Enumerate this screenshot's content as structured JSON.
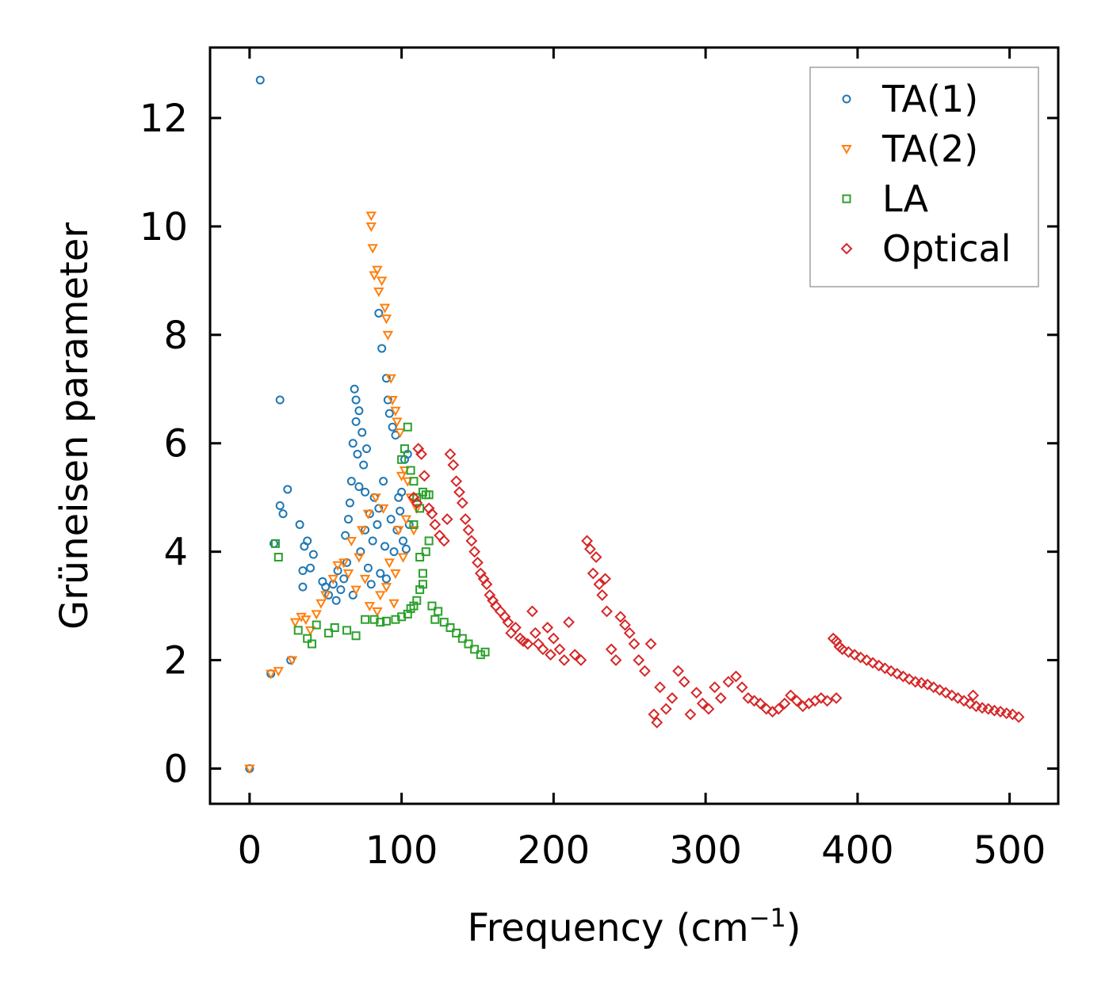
{
  "chart_data": {
    "type": "scatter",
    "title": "",
    "xlabel": "Frequency (cm",
    "xlabel_superscript": "−1",
    "xlabel_suffix": ")",
    "ylabel": "Grüneisen parameter",
    "xlim": [
      -26,
      532
    ],
    "ylim": [
      -0.65,
      13.3
    ],
    "xticks": [
      0,
      100,
      200,
      300,
      400,
      500
    ],
    "yticks": [
      0,
      2,
      4,
      6,
      8,
      10,
      12
    ],
    "legend_position": "top-right",
    "grid": false,
    "series": [
      {
        "name": "TA(1)",
        "marker": "circle",
        "color": "#1f77b4",
        "points": [
          [
            0,
            0.0
          ],
          [
            7,
            12.7
          ],
          [
            14,
            1.75
          ],
          [
            16,
            4.15
          ],
          [
            20,
            6.8
          ],
          [
            20,
            4.85
          ],
          [
            22,
            4.7
          ],
          [
            25,
            5.15
          ],
          [
            27,
            2.0
          ],
          [
            33,
            4.5
          ],
          [
            35,
            3.65
          ],
          [
            35,
            3.35
          ],
          [
            36,
            4.1
          ],
          [
            38,
            4.2
          ],
          [
            40,
            3.7
          ],
          [
            42,
            3.95
          ],
          [
            48,
            3.45
          ],
          [
            50,
            3.35
          ],
          [
            52,
            3.2
          ],
          [
            55,
            3.4
          ],
          [
            58,
            3.65
          ],
          [
            60,
            3.3
          ],
          [
            62,
            3.5
          ],
          [
            63,
            4.3
          ],
          [
            65,
            4.6
          ],
          [
            66,
            4.9
          ],
          [
            67,
            5.3
          ],
          [
            68,
            6.0
          ],
          [
            69,
            7.0
          ],
          [
            70,
            6.8
          ],
          [
            70,
            6.4
          ],
          [
            71,
            5.8
          ],
          [
            72,
            5.2
          ],
          [
            72,
            6.6
          ],
          [
            73,
            4.0
          ],
          [
            74,
            6.2
          ],
          [
            75,
            5.6
          ],
          [
            76,
            5.1
          ],
          [
            76,
            4.4
          ],
          [
            77,
            5.9
          ],
          [
            78,
            3.7
          ],
          [
            79,
            4.7
          ],
          [
            80,
            3.4
          ],
          [
            81,
            4.2
          ],
          [
            82,
            5.0
          ],
          [
            84,
            4.5
          ],
          [
            85,
            8.4
          ],
          [
            85,
            4.8
          ],
          [
            86,
            3.6
          ],
          [
            87,
            7.75
          ],
          [
            88,
            5.3
          ],
          [
            89,
            4.1
          ],
          [
            90,
            7.2
          ],
          [
            90,
            3.5
          ],
          [
            91,
            6.8
          ],
          [
            92,
            6.55
          ],
          [
            93,
            4.6
          ],
          [
            94,
            6.3
          ],
          [
            95,
            4.0
          ],
          [
            96,
            6.15
          ],
          [
            97,
            4.4
          ],
          [
            98,
            5.0
          ],
          [
            99,
            4.75
          ],
          [
            100,
            5.1
          ],
          [
            101,
            4.2
          ],
          [
            102,
            5.7
          ],
          [
            104,
            5.8
          ],
          [
            105,
            4.5
          ],
          [
            103,
            4.05
          ],
          [
            57,
            3.1
          ],
          [
            64,
            3.8
          ],
          [
            68,
            3.2
          ]
        ]
      },
      {
        "name": "TA(2)",
        "marker": "triangle-down",
        "color": "#ff7f0e",
        "points": [
          [
            0,
            0.0
          ],
          [
            14,
            1.75
          ],
          [
            19,
            1.8
          ],
          [
            28,
            2.0
          ],
          [
            30,
            2.7
          ],
          [
            34,
            2.8
          ],
          [
            37,
            2.75
          ],
          [
            40,
            2.55
          ],
          [
            44,
            2.85
          ],
          [
            47,
            3.05
          ],
          [
            50,
            3.2
          ],
          [
            55,
            3.5
          ],
          [
            58,
            3.75
          ],
          [
            62,
            3.8
          ],
          [
            65,
            3.6
          ],
          [
            67,
            4.2
          ],
          [
            70,
            3.3
          ],
          [
            72,
            3.9
          ],
          [
            74,
            4.4
          ],
          [
            76,
            3.5
          ],
          [
            78,
            4.7
          ],
          [
            80,
            10.2
          ],
          [
            80,
            10.0
          ],
          [
            81,
            9.6
          ],
          [
            82,
            9.1
          ],
          [
            83,
            5.0
          ],
          [
            84,
            9.2
          ],
          [
            85,
            8.8
          ],
          [
            86,
            3.2
          ],
          [
            87,
            9.0
          ],
          [
            88,
            4.8
          ],
          [
            89,
            8.5
          ],
          [
            90,
            8.3
          ],
          [
            91,
            8.0
          ],
          [
            92,
            3.8
          ],
          [
            93,
            7.2
          ],
          [
            94,
            6.8
          ],
          [
            95,
            3.05
          ],
          [
            96,
            6.6
          ],
          [
            97,
            6.4
          ],
          [
            98,
            4.4
          ],
          [
            99,
            6.2
          ],
          [
            100,
            5.4
          ],
          [
            101,
            3.9
          ],
          [
            102,
            5.5
          ],
          [
            103,
            4.6
          ],
          [
            104,
            5.3
          ],
          [
            106,
            5.0
          ],
          [
            108,
            4.4
          ],
          [
            110,
            4.8
          ],
          [
            79,
            3.0
          ],
          [
            84,
            2.9
          ],
          [
            90,
            3.35
          ],
          [
            96,
            3.6
          ]
        ]
      },
      {
        "name": "LA",
        "marker": "square",
        "color": "#2ca02c",
        "points": [
          [
            17,
            4.15
          ],
          [
            19,
            3.9
          ],
          [
            32,
            2.55
          ],
          [
            38,
            2.4
          ],
          [
            41,
            2.3
          ],
          [
            44,
            2.65
          ],
          [
            52,
            2.5
          ],
          [
            56,
            2.6
          ],
          [
            64,
            2.55
          ],
          [
            70,
            2.45
          ],
          [
            76,
            2.75
          ],
          [
            82,
            2.75
          ],
          [
            86,
            2.7
          ],
          [
            90,
            2.72
          ],
          [
            96,
            2.75
          ],
          [
            100,
            2.8
          ],
          [
            104,
            2.85
          ],
          [
            106,
            2.95
          ],
          [
            108,
            3.0
          ],
          [
            110,
            3.1
          ],
          [
            112,
            3.3
          ],
          [
            114,
            3.6
          ],
          [
            116,
            4.0
          ],
          [
            118,
            4.2
          ],
          [
            120,
            3.0
          ],
          [
            122,
            2.75
          ],
          [
            124,
            2.9
          ],
          [
            128,
            2.7
          ],
          [
            132,
            2.6
          ],
          [
            136,
            2.5
          ],
          [
            140,
            2.4
          ],
          [
            144,
            2.3
          ],
          [
            148,
            2.2
          ],
          [
            152,
            2.1
          ],
          [
            155,
            2.15
          ],
          [
            100,
            5.7
          ],
          [
            102,
            5.9
          ],
          [
            104,
            6.3
          ],
          [
            106,
            5.5
          ],
          [
            108,
            5.3
          ],
          [
            110,
            5.0
          ],
          [
            112,
            4.8
          ],
          [
            114,
            5.1
          ],
          [
            116,
            5.05
          ],
          [
            118,
            5.05
          ],
          [
            112,
            3.9
          ],
          [
            114,
            3.4
          ],
          [
            108,
            4.5
          ]
        ]
      },
      {
        "name": "Optical",
        "marker": "diamond",
        "color": "#d62728",
        "points": [
          [
            108,
            5.0
          ],
          [
            110,
            4.9
          ],
          [
            111,
            5.9
          ],
          [
            113,
            5.8
          ],
          [
            115,
            5.4
          ],
          [
            118,
            4.8
          ],
          [
            120,
            4.7
          ],
          [
            122,
            4.5
          ],
          [
            125,
            4.3
          ],
          [
            128,
            4.2
          ],
          [
            130,
            4.6
          ],
          [
            132,
            5.8
          ],
          [
            134,
            5.6
          ],
          [
            136,
            5.3
          ],
          [
            138,
            5.1
          ],
          [
            140,
            4.9
          ],
          [
            142,
            4.6
          ],
          [
            144,
            4.4
          ],
          [
            146,
            4.2
          ],
          [
            148,
            4.0
          ],
          [
            150,
            3.8
          ],
          [
            152,
            3.6
          ],
          [
            154,
            3.5
          ],
          [
            156,
            3.4
          ],
          [
            158,
            3.2
          ],
          [
            160,
            3.1
          ],
          [
            162,
            3.0
          ],
          [
            165,
            2.9
          ],
          [
            168,
            2.8
          ],
          [
            170,
            2.7
          ],
          [
            172,
            2.5
          ],
          [
            175,
            2.6
          ],
          [
            178,
            2.4
          ],
          [
            180,
            2.35
          ],
          [
            183,
            2.3
          ],
          [
            186,
            2.9
          ],
          [
            188,
            2.5
          ],
          [
            190,
            2.3
          ],
          [
            193,
            2.2
          ],
          [
            196,
            2.6
          ],
          [
            198,
            2.1
          ],
          [
            200,
            2.4
          ],
          [
            204,
            2.2
          ],
          [
            207,
            2.0
          ],
          [
            210,
            2.7
          ],
          [
            214,
            2.1
          ],
          [
            218,
            2.0
          ],
          [
            222,
            4.2
          ],
          [
            224,
            4.05
          ],
          [
            226,
            3.6
          ],
          [
            228,
            3.9
          ],
          [
            230,
            3.4
          ],
          [
            232,
            3.2
          ],
          [
            234,
            3.5
          ],
          [
            235,
            2.9
          ],
          [
            238,
            2.2
          ],
          [
            241,
            2.0
          ],
          [
            244,
            2.8
          ],
          [
            247,
            2.65
          ],
          [
            250,
            2.5
          ],
          [
            253,
            2.3
          ],
          [
            256,
            2.0
          ],
          [
            260,
            1.8
          ],
          [
            264,
            2.3
          ],
          [
            266,
            1.0
          ],
          [
            268,
            0.85
          ],
          [
            270,
            1.5
          ],
          [
            274,
            1.1
          ],
          [
            278,
            1.3
          ],
          [
            282,
            1.8
          ],
          [
            286,
            1.6
          ],
          [
            290,
            1.0
          ],
          [
            294,
            1.4
          ],
          [
            298,
            1.2
          ],
          [
            302,
            1.1
          ],
          [
            306,
            1.5
          ],
          [
            310,
            1.3
          ],
          [
            315,
            1.6
          ],
          [
            320,
            1.7
          ],
          [
            324,
            1.5
          ],
          [
            328,
            1.3
          ],
          [
            332,
            1.25
          ],
          [
            336,
            1.2
          ],
          [
            340,
            1.1
          ],
          [
            344,
            1.05
          ],
          [
            348,
            1.1
          ],
          [
            352,
            1.2
          ],
          [
            356,
            1.35
          ],
          [
            360,
            1.25
          ],
          [
            364,
            1.15
          ],
          [
            368,
            1.2
          ],
          [
            372,
            1.25
          ],
          [
            376,
            1.3
          ],
          [
            380,
            1.25
          ],
          [
            386,
            1.3
          ],
          [
            384,
            2.4
          ],
          [
            386,
            2.35
          ],
          [
            388,
            2.25
          ],
          [
            390,
            2.2
          ],
          [
            394,
            2.15
          ],
          [
            398,
            2.1
          ],
          [
            402,
            2.05
          ],
          [
            406,
            2.0
          ],
          [
            410,
            1.95
          ],
          [
            414,
            1.9
          ],
          [
            418,
            1.85
          ],
          [
            422,
            1.8
          ],
          [
            426,
            1.75
          ],
          [
            430,
            1.7
          ],
          [
            434,
            1.65
          ],
          [
            438,
            1.6
          ],
          [
            442,
            1.58
          ],
          [
            446,
            1.55
          ],
          [
            450,
            1.5
          ],
          [
            454,
            1.45
          ],
          [
            458,
            1.4
          ],
          [
            462,
            1.35
          ],
          [
            466,
            1.3
          ],
          [
            470,
            1.25
          ],
          [
            474,
            1.2
          ],
          [
            476,
            1.35
          ],
          [
            478,
            1.15
          ],
          [
            482,
            1.12
          ],
          [
            486,
            1.1
          ],
          [
            490,
            1.07
          ],
          [
            494,
            1.05
          ],
          [
            498,
            1.02
          ],
          [
            502,
            1.0
          ],
          [
            506,
            0.95
          ]
        ]
      }
    ]
  }
}
